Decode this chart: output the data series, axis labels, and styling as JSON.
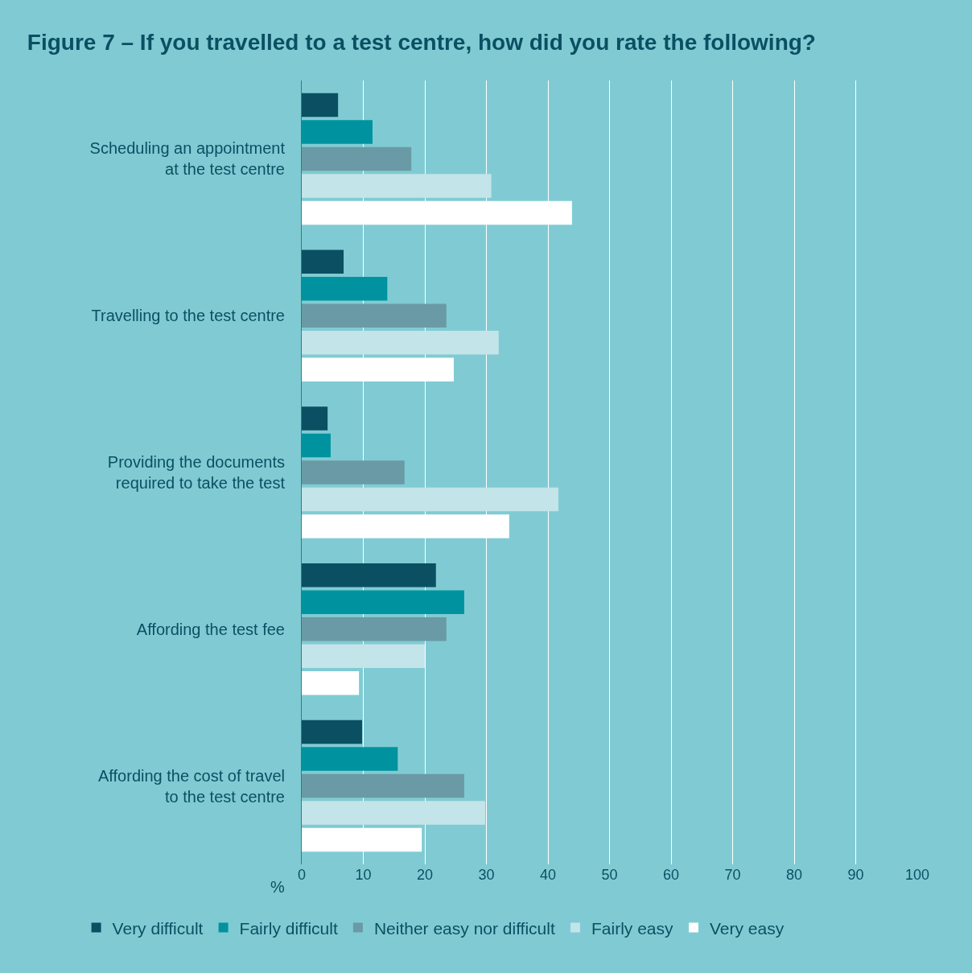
{
  "chart_data": {
    "type": "bar",
    "orientation": "horizontal",
    "title": "Figure 7 – If you travelled to a test centre, how did you rate the following?",
    "categories": [
      "Scheduling an appointment\nat the test centre",
      "Travelling to the test centre",
      "Providing the documents\nrequired to take the test",
      "Affording the test fee",
      "Affording the cost of travel\nto the test centre"
    ],
    "series": [
      {
        "name": "Very difficult",
        "color": "#0a4f62",
        "values": [
          5.9,
          6.8,
          4.2,
          21.8,
          9.8
        ]
      },
      {
        "name": "Fairly difficult",
        "color": "#00939f",
        "values": [
          11.5,
          13.9,
          4.7,
          26.4,
          15.6
        ]
      },
      {
        "name": "Neither easy nor difficult",
        "color": "#6a9aa5",
        "values": [
          17.8,
          23.5,
          16.7,
          23.5,
          26.4
        ]
      },
      {
        "name": "Fairly easy",
        "color": "#c3e4e8",
        "values": [
          30.8,
          32.0,
          41.7,
          20.0,
          29.8
        ]
      },
      {
        "name": "Very easy",
        "color": "#ffffff",
        "values": [
          43.9,
          24.7,
          33.7,
          9.3,
          19.5
        ]
      }
    ],
    "xlabel": "%",
    "xlim": [
      0,
      100
    ],
    "xticks": [
      0,
      10,
      20,
      30,
      40,
      50,
      60,
      70,
      80,
      90,
      100
    ],
    "grid": "x",
    "legend": "bottom"
  }
}
